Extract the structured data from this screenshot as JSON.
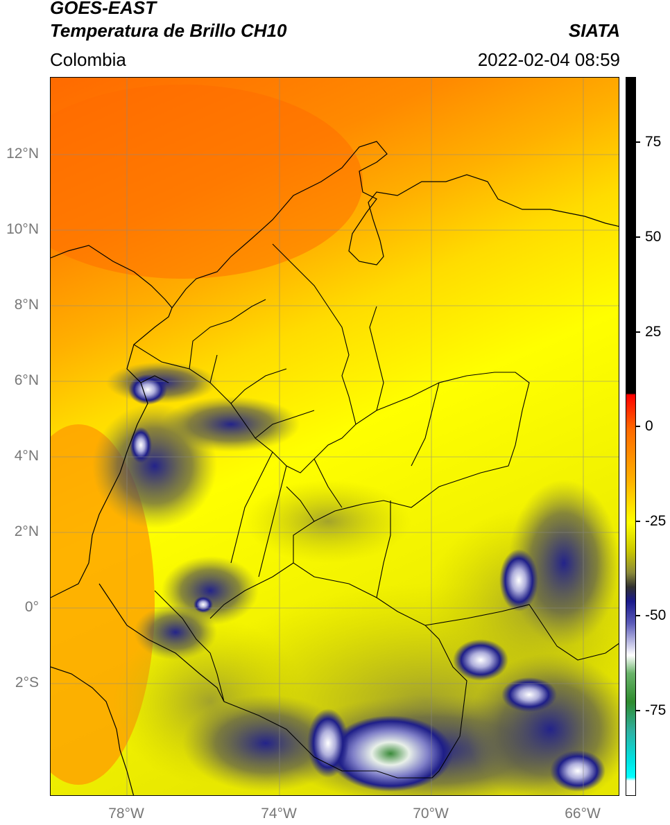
{
  "header": {
    "title_line1": "GOES-EAST",
    "title_line2": "Temperatura de Brillo CH10",
    "brand": "SIATA",
    "region": "Colombia",
    "timestamp": "2022-02-04 08:59"
  },
  "map": {
    "lat_labels": [
      "12°N",
      "10°N",
      "8°N",
      "6°N",
      "4°N",
      "2°N",
      "0°",
      "2°S"
    ],
    "lon_labels": [
      "78°W",
      "74°W",
      "70°W",
      "66°W"
    ],
    "colorbar_labels": [
      "75",
      "50",
      "25",
      "0",
      "-25",
      "-50",
      "-75"
    ],
    "colors": {
      "warm_ocean": "#ff7a00",
      "mid": "#ffd000",
      "cool": "#ffff00",
      "cloud_dark": "#20208a",
      "cloud_light": "#e8e8f4",
      "cold_green": "#3a8a3a"
    }
  }
}
